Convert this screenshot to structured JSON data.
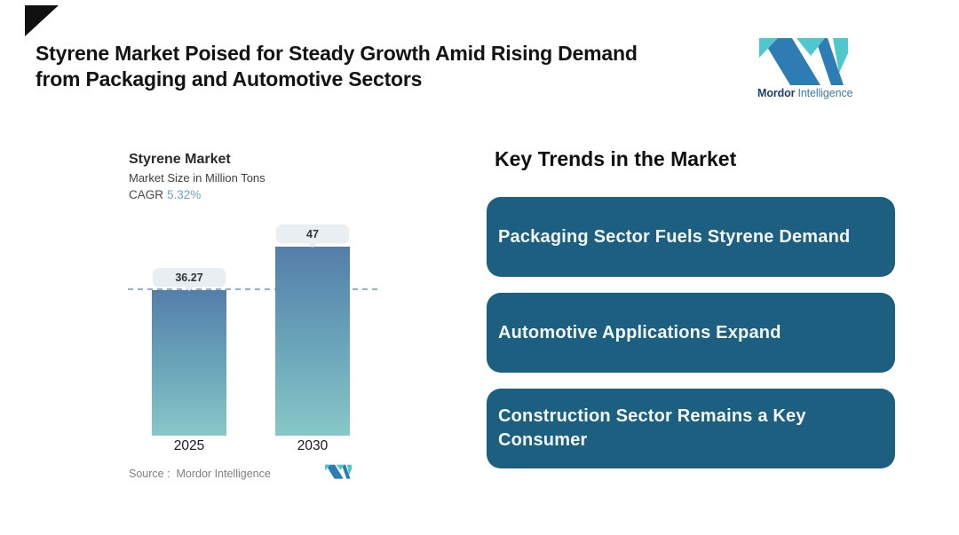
{
  "page": {
    "background": "#ffffff"
  },
  "header": {
    "title_line1": "Styrene Market Poised for Steady Growth Amid Rising Demand",
    "title_line2": "from Packaging and Automotive Sectors",
    "brand": {
      "name_bold": "Mordor",
      "name_light": "Intelligence"
    }
  },
  "chart": {
    "title": "Styrene Market",
    "subtitle": "Market Size in Million Tons",
    "cagr_label": "CAGR",
    "cagr_value": "5.32%",
    "source": "Source :  Mordor Intelligence"
  },
  "chart_data": {
    "type": "bar",
    "categories": [
      "2025",
      "2030"
    ],
    "values": [
      36.27,
      47
    ],
    "value_labels": [
      "36.27",
      "47"
    ],
    "title": "Styrene Market",
    "ylabel": "Market Size in Million Tons",
    "xlabel": "",
    "ylim": [
      0,
      52
    ],
    "gridlines": false,
    "legend": "none",
    "reference_line_y": 36.27,
    "reference_line_style": "dashed",
    "cagr": "5.32%"
  },
  "trends": {
    "heading": "Key Trends in the Market",
    "items": [
      {
        "label": "Packaging Sector Fuels Styrene Demand"
      },
      {
        "label": "Automotive Applications Expand"
      },
      {
        "label": "Construction Sector Remains a Key\nConsumer"
      }
    ]
  },
  "icons": {
    "brand_mark": "mordor-intelligence-m-logo",
    "brand_mark_small": "mordor-intelligence-m-logo-small"
  },
  "colors": {
    "accent_blue": "#2d7cb4",
    "accent_teal": "#4ec8cc",
    "trend_box_bg": "#1d5f80",
    "bar_gradient_top": "#547ea9",
    "bar_gradient_bottom": "#87c8c7",
    "dashed_line": "#8fb3d0",
    "value_pill_bg": "#e8eef1",
    "cagr_value_color": "#6ba3d6",
    "corner_triangle": "#101010"
  }
}
